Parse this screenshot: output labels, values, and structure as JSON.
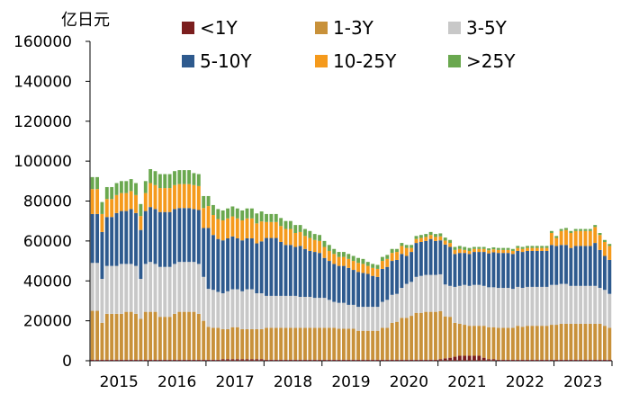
{
  "chart_data": {
    "type": "bar",
    "stacked": true,
    "unit_label": "亿日元",
    "ylim": [
      0,
      160000
    ],
    "yticks": [
      0,
      20000,
      40000,
      60000,
      80000,
      100000,
      120000,
      140000,
      160000
    ],
    "ytick_labels": [
      "0",
      "20000",
      "40000",
      "60000",
      "80000",
      "100000",
      "120000",
      "140000",
      "160000"
    ],
    "xtick_labels": [
      "2015",
      "2016",
      "2017",
      "2018",
      "2019",
      "2020",
      "2021",
      "2022",
      "2023"
    ],
    "bars_per_year": 12,
    "legend_position": "top",
    "series": [
      {
        "name": "<1Y",
        "color": "#7b1e1e",
        "values": [
          500,
          500,
          500,
          500,
          500,
          500,
          500,
          500,
          500,
          500,
          500,
          500,
          500,
          500,
          500,
          500,
          500,
          500,
          500,
          500,
          500,
          500,
          500,
          500,
          500,
          500,
          500,
          800,
          800,
          800,
          800,
          800,
          800,
          800,
          800,
          800,
          500,
          500,
          500,
          500,
          500,
          500,
          500,
          500,
          500,
          500,
          500,
          500,
          500,
          500,
          500,
          500,
          500,
          500,
          500,
          500,
          500,
          500,
          500,
          500,
          500,
          500,
          500,
          500,
          500,
          500,
          500,
          500,
          500,
          500,
          500,
          500,
          800,
          1200,
          1500,
          2000,
          2500,
          2500,
          2500,
          2500,
          2500,
          1500,
          800,
          800,
          500,
          500,
          500,
          500,
          500,
          500,
          500,
          500,
          500,
          500,
          500,
          500,
          500,
          500,
          500,
          500,
          500,
          500,
          500,
          500,
          500,
          500,
          500,
          500
        ]
      },
      {
        "name": "1-3Y",
        "color": "#c8913a",
        "values": [
          24500,
          24500,
          18500,
          23000,
          23000,
          23000,
          23000,
          24000,
          24000,
          23000,
          20500,
          24000,
          24000,
          24000,
          21500,
          21500,
          21500,
          23000,
          24000,
          24000,
          24000,
          24000,
          23000,
          19500,
          16500,
          16000,
          16000,
          15000,
          15000,
          16000,
          16000,
          15000,
          15000,
          15000,
          15000,
          15000,
          16000,
          16000,
          16000,
          16000,
          16000,
          16000,
          16000,
          16000,
          16000,
          16000,
          16000,
          16000,
          16000,
          16000,
          16000,
          15500,
          15500,
          15500,
          15500,
          14500,
          14500,
          14500,
          14500,
          14500,
          16000,
          16000,
          18500,
          19000,
          21000,
          21000,
          22000,
          23500,
          23500,
          24000,
          24000,
          24000,
          24000,
          21000,
          20500,
          17000,
          16000,
          15500,
          15000,
          15000,
          15000,
          16000,
          16000,
          16000,
          16000,
          16000,
          16000,
          16000,
          17000,
          16500,
          17000,
          17000,
          17000,
          17000,
          17000,
          17500,
          17500,
          18000,
          18000,
          18000,
          18000,
          18000,
          18000,
          18000,
          18000,
          18000,
          17000,
          16000
        ]
      },
      {
        "name": "3-5Y",
        "color": "#c8c8c8",
        "values": [
          24000,
          24000,
          22000,
          24000,
          24000,
          24000,
          25000,
          24000,
          24000,
          24000,
          20000,
          24000,
          25000,
          24000,
          25000,
          25000,
          25000,
          25000,
          25000,
          25000,
          25000,
          25000,
          25000,
          22000,
          19000,
          19000,
          18000,
          18000,
          19000,
          19000,
          19000,
          19000,
          20000,
          20000,
          18000,
          18000,
          16000,
          16000,
          16000,
          16000,
          16000,
          16000,
          16000,
          15500,
          15500,
          15500,
          15000,
          15000,
          15000,
          14000,
          13000,
          13000,
          13000,
          12000,
          12000,
          12000,
          12000,
          12000,
          12000,
          12000,
          13000,
          14000,
          14000,
          14000,
          15000,
          17000,
          17000,
          18000,
          18500,
          18500,
          18500,
          18500,
          18500,
          16000,
          15500,
          18000,
          19000,
          20000,
          20000,
          20500,
          20500,
          20000,
          20000,
          20000,
          20000,
          20000,
          20000,
          19500,
          19500,
          19500,
          19500,
          19500,
          19500,
          19500,
          19500,
          20000,
          20000,
          20000,
          20000,
          19000,
          19000,
          19000,
          19000,
          19000,
          19000,
          18000,
          18000,
          17000
        ]
      },
      {
        "name": "5-10Y",
        "color": "#2e5a8e",
        "values": [
          24500,
          24500,
          23500,
          24500,
          24500,
          26500,
          26500,
          26500,
          27500,
          26500,
          24500,
          26500,
          27500,
          27500,
          27500,
          27500,
          27500,
          27500,
          27000,
          27000,
          27000,
          26500,
          27000,
          24500,
          30500,
          27500,
          26500,
          26500,
          26500,
          26500,
          25500,
          25500,
          25500,
          25500,
          25000,
          26000,
          29000,
          29000,
          29000,
          27000,
          25500,
          25500,
          24500,
          25500,
          24000,
          23000,
          23000,
          22500,
          20000,
          19500,
          19000,
          18500,
          18500,
          18500,
          17500,
          17500,
          17000,
          16500,
          15500,
          15000,
          16500,
          16500,
          17000,
          17000,
          17000,
          14000,
          15000,
          17000,
          17000,
          17000,
          18000,
          17000,
          17000,
          20000,
          19500,
          16500,
          16500,
          16000,
          16000,
          16500,
          16500,
          17000,
          17000,
          17500,
          17500,
          17500,
          17500,
          17500,
          18000,
          18000,
          18000,
          18000,
          18000,
          18000,
          18000,
          20000,
          19500,
          19500,
          19500,
          19000,
          20000,
          20000,
          20000,
          20000,
          21500,
          19000,
          17000,
          17000
        ]
      },
      {
        "name": "10-25Y",
        "color": "#f59a1c",
        "values": [
          12500,
          12500,
          9000,
          9000,
          9000,
          9000,
          9000,
          9000,
          9000,
          9000,
          7000,
          9000,
          12000,
          12000,
          12000,
          12000,
          12000,
          12000,
          12000,
          12000,
          12000,
          12000,
          12000,
          10000,
          11000,
          10000,
          10000,
          10000,
          10000,
          10000,
          10000,
          10000,
          10000,
          10000,
          10000,
          10000,
          8000,
          8000,
          8000,
          8000,
          8000,
          8000,
          7000,
          7000,
          6500,
          6500,
          6000,
          6000,
          5500,
          5000,
          5000,
          4500,
          4500,
          4500,
          4500,
          4500,
          4500,
          4000,
          4000,
          4000,
          4000,
          4000,
          4000,
          4000,
          4000,
          4000,
          2000,
          2000,
          2000,
          2000,
          2000,
          2000,
          2000,
          2000,
          2000,
          2000,
          2000,
          1500,
          1500,
          1500,
          1500,
          1500,
          1500,
          1500,
          1500,
          1500,
          1500,
          1500,
          1500,
          1500,
          1500,
          1500,
          1500,
          1500,
          1500,
          6000,
          4000,
          7000,
          7500,
          7500,
          7500,
          7500,
          7500,
          7500,
          8000,
          7500,
          7000,
          7000
        ]
      },
      {
        "name": ">25Y",
        "color": "#6aa84f",
        "values": [
          6000,
          6000,
          6000,
          6000,
          6000,
          6000,
          6000,
          6000,
          6000,
          6000,
          6000,
          6000,
          7000,
          7000,
          7000,
          7000,
          7000,
          7000,
          7000,
          7000,
          7000,
          6000,
          6000,
          6000,
          5000,
          5000,
          5000,
          5000,
          5000,
          5000,
          5000,
          5000,
          5000,
          5000,
          5000,
          5000,
          4000,
          4000,
          4000,
          4000,
          4000,
          4000,
          4000,
          3500,
          3500,
          3500,
          3000,
          3000,
          3000,
          3000,
          2500,
          2500,
          2500,
          2500,
          2500,
          2500,
          2500,
          2000,
          2000,
          2000,
          2000,
          2000,
          2000,
          1500,
          1500,
          1500,
          1500,
          1500,
          1500,
          1500,
          1500,
          1500,
          1500,
          1500,
          1500,
          1500,
          1500,
          1500,
          1500,
          1000,
          1000,
          1000,
          1000,
          1000,
          1000,
          1000,
          1000,
          1000,
          1000,
          1000,
          1000,
          1000,
          1000,
          1000,
          1000,
          1000,
          1000,
          1000,
          1000,
          1000,
          1000,
          1000,
          1000,
          1000,
          1000,
          1000,
          1000,
          1000
        ]
      }
    ]
  }
}
